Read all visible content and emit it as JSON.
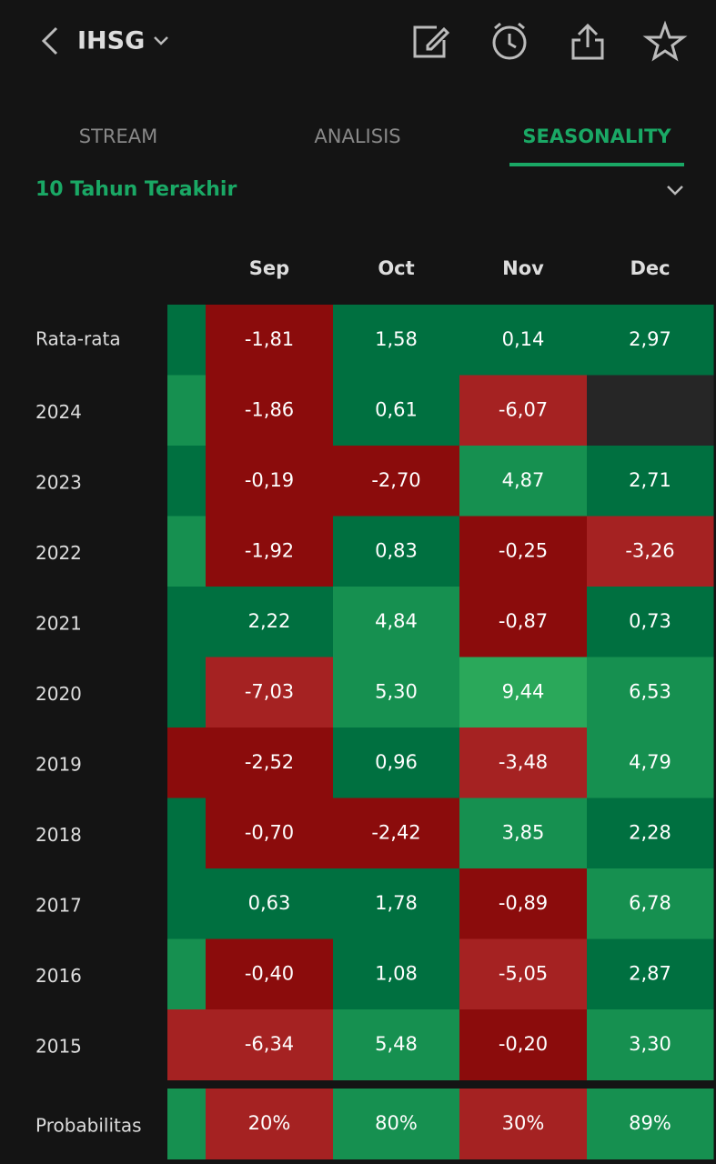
{
  "header": {
    "title": "IHSG"
  },
  "tabs": {
    "items": [
      "STREAM",
      "ANALISIS",
      "SEASONALITY"
    ],
    "active": 2
  },
  "filter": {
    "label": "10 Tahun Terakhir"
  },
  "table": {
    "columns": [
      "Sep",
      "Oct",
      "Nov",
      "Dec"
    ],
    "rows": [
      {
        "label": "Rata-rata",
        "cells": [
          "-1,81",
          "1,58",
          "0,14",
          "2,97"
        ]
      },
      {
        "label": "2024",
        "cells": [
          "-1,86",
          "0,61",
          "-6,07",
          null
        ]
      },
      {
        "label": "2023",
        "cells": [
          "-0,19",
          "-2,70",
          "4,87",
          "2,71"
        ]
      },
      {
        "label": "2022",
        "cells": [
          "-1,92",
          "0,83",
          "-0,25",
          "-3,26"
        ]
      },
      {
        "label": "2021",
        "cells": [
          "2,22",
          "4,84",
          "-0,87",
          "0,73"
        ]
      },
      {
        "label": "2020",
        "cells": [
          "-7,03",
          "5,30",
          "9,44",
          "6,53"
        ]
      },
      {
        "label": "2019",
        "cells": [
          "-2,52",
          "0,96",
          "-3,48",
          "4,79"
        ]
      },
      {
        "label": "2018",
        "cells": [
          "-0,70",
          "-2,42",
          "3,85",
          "2,28"
        ]
      },
      {
        "label": "2017",
        "cells": [
          "0,63",
          "1,78",
          "-0,89",
          "6,78"
        ]
      },
      {
        "label": "2016",
        "cells": [
          "-0,40",
          "1,08",
          "-5,05",
          "2,87"
        ]
      },
      {
        "label": "2015",
        "cells": [
          "-6,34",
          "5,48",
          "-0,20",
          "3,30"
        ]
      }
    ],
    "probability": {
      "label": "Probabilitas",
      "cells": [
        "20%",
        "80%",
        "30%",
        "89%"
      ]
    }
  }
}
